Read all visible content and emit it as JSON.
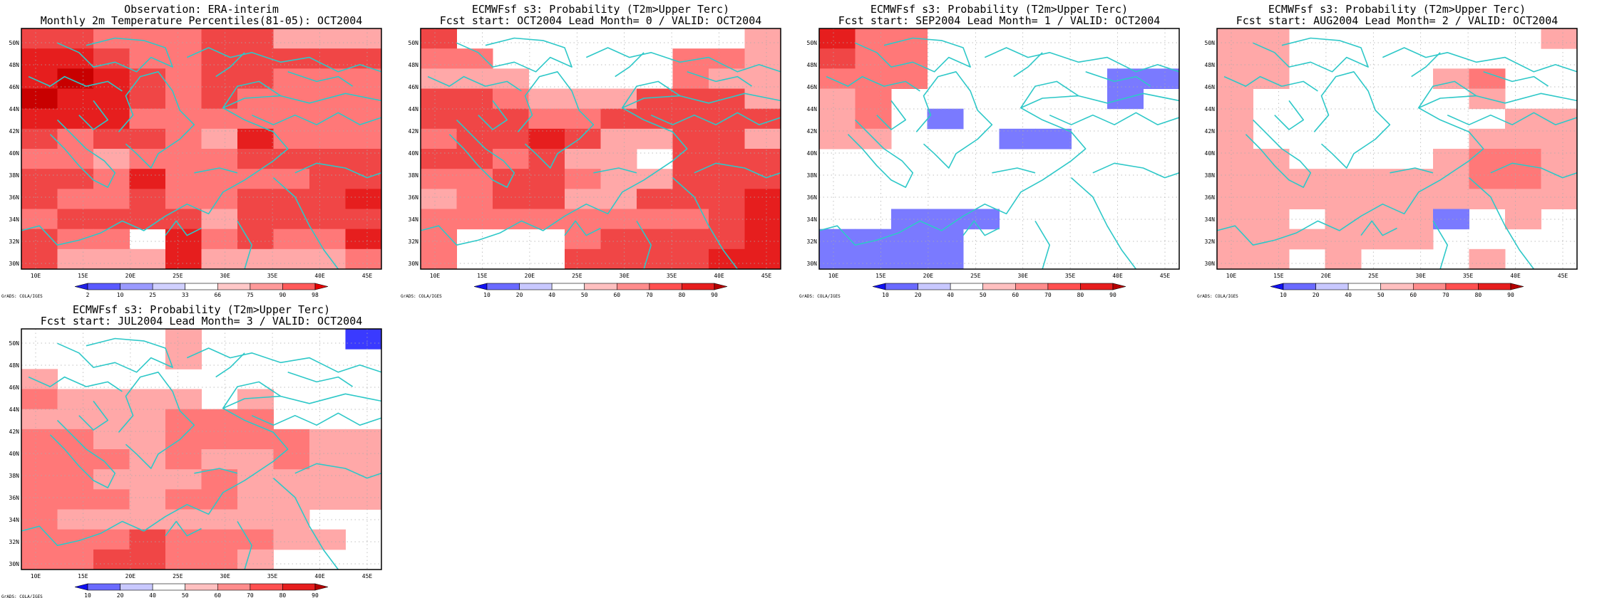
{
  "lat_labels": [
    "30N",
    "32N",
    "34N",
    "36N",
    "38N",
    "40N",
    "42N",
    "44N",
    "46N",
    "48N",
    "50N"
  ],
  "lon_labels": [
    "10E",
    "15E",
    "20E",
    "25E",
    "30E",
    "35E",
    "40E",
    "45E"
  ],
  "credit": "GrADS: COLA/IGES",
  "obs_colorbar_ticks": [
    "2",
    "10",
    "25",
    "33",
    "66",
    "75",
    "90",
    "98"
  ],
  "prob_colorbar_ticks": [
    "10",
    "20",
    "40",
    "50",
    "60",
    "70",
    "80",
    "90"
  ],
  "colors": {
    "coast": "#2ec8c8",
    "frame": "#000000",
    "grid": "#aaaaaa",
    "classes": [
      "#ffffff",
      "#ffa8a8",
      "#ff7878",
      "#f04646",
      "#e61e1e",
      "#c80000",
      "#a00000",
      "#3a3aff",
      "#0000e6",
      "#7a7aff"
    ]
  },
  "panels": [
    {
      "id": "obs",
      "title_line1": "Observation: ERA-interim",
      "title_line2": "Monthly 2m Temperature Percentiles(81-05): OCT2004",
      "colorbar": "obs",
      "grid": [
        "3322233111",
        "4432233333",
        "4543233222",
        "5443232222",
        "4442222222",
        "3233214222",
        "2212223333",
        "3324222233",
        "3223223334",
        "2333313333",
        "3220423224",
        "3111411112"
      ]
    },
    {
      "id": "lead0",
      "title_line1": "ECMWFsf s3: Probability (T2m>Upper Terc)",
      "title_line2": "Fcst start: OCT2004   Lead Month= 0 / VALID: OCT2004",
      "colorbar": "prob",
      "grid": [
        "3000000001",
        "2200000221",
        "1110000211",
        "3321113331",
        "3332233333",
        "2334311331",
        "3323110333",
        "2233211333",
        "1233113334",
        "2222222234",
        "2000233334",
        "2000333344"
      ]
    },
    {
      "id": "lead1",
      "title_line1": "ECMWFsf s3: Probability (T2m>Upper Terc)",
      "title_line2": "Fcst start: SEP2004   Lead Month= 1 / VALID: OCT2004",
      "colorbar": "prob",
      "grid": [
        "4220000000",
        "3220000000",
        "2220000099",
        "1200000090",
        "1209000000",
        "1100099000",
        "0000000000",
        "0000000000",
        "0000000000",
        "0099900000",
        "9999000000",
        "9999000000"
      ]
    },
    {
      "id": "lead2",
      "title_line1": "ECMWFsf s3: Probability (T2m>Upper Terc)",
      "title_line2": "Fcst start: AUG2004   Lead Month= 2 / VALID: OCT2004",
      "colorbar": "prob",
      "grid": [
        "1100000001",
        "1100000000",
        "1100001200",
        "1000000100",
        "1000000011",
        "1000000111",
        "1100001221",
        "1111111221",
        "1111111111",
        "1101119010",
        "1111110000",
        "1101000100"
      ]
    },
    {
      "id": "lead3",
      "title_line1": "ECMWFsf s3: Probability (T2m>Upper Terc)",
      "title_line2": "Fcst start: JUL2004   Lead Month= 3 / VALID: OCT2004",
      "colorbar": "prob",
      "grid": [
        "0000100007",
        "0000100000",
        "1000000000",
        "2111101000",
        "1111222000",
        "2211222211",
        "2221211211",
        "2211121111",
        "2221221111",
        "2111111100",
        "2223222110",
        "2233221000"
      ]
    }
  ]
}
